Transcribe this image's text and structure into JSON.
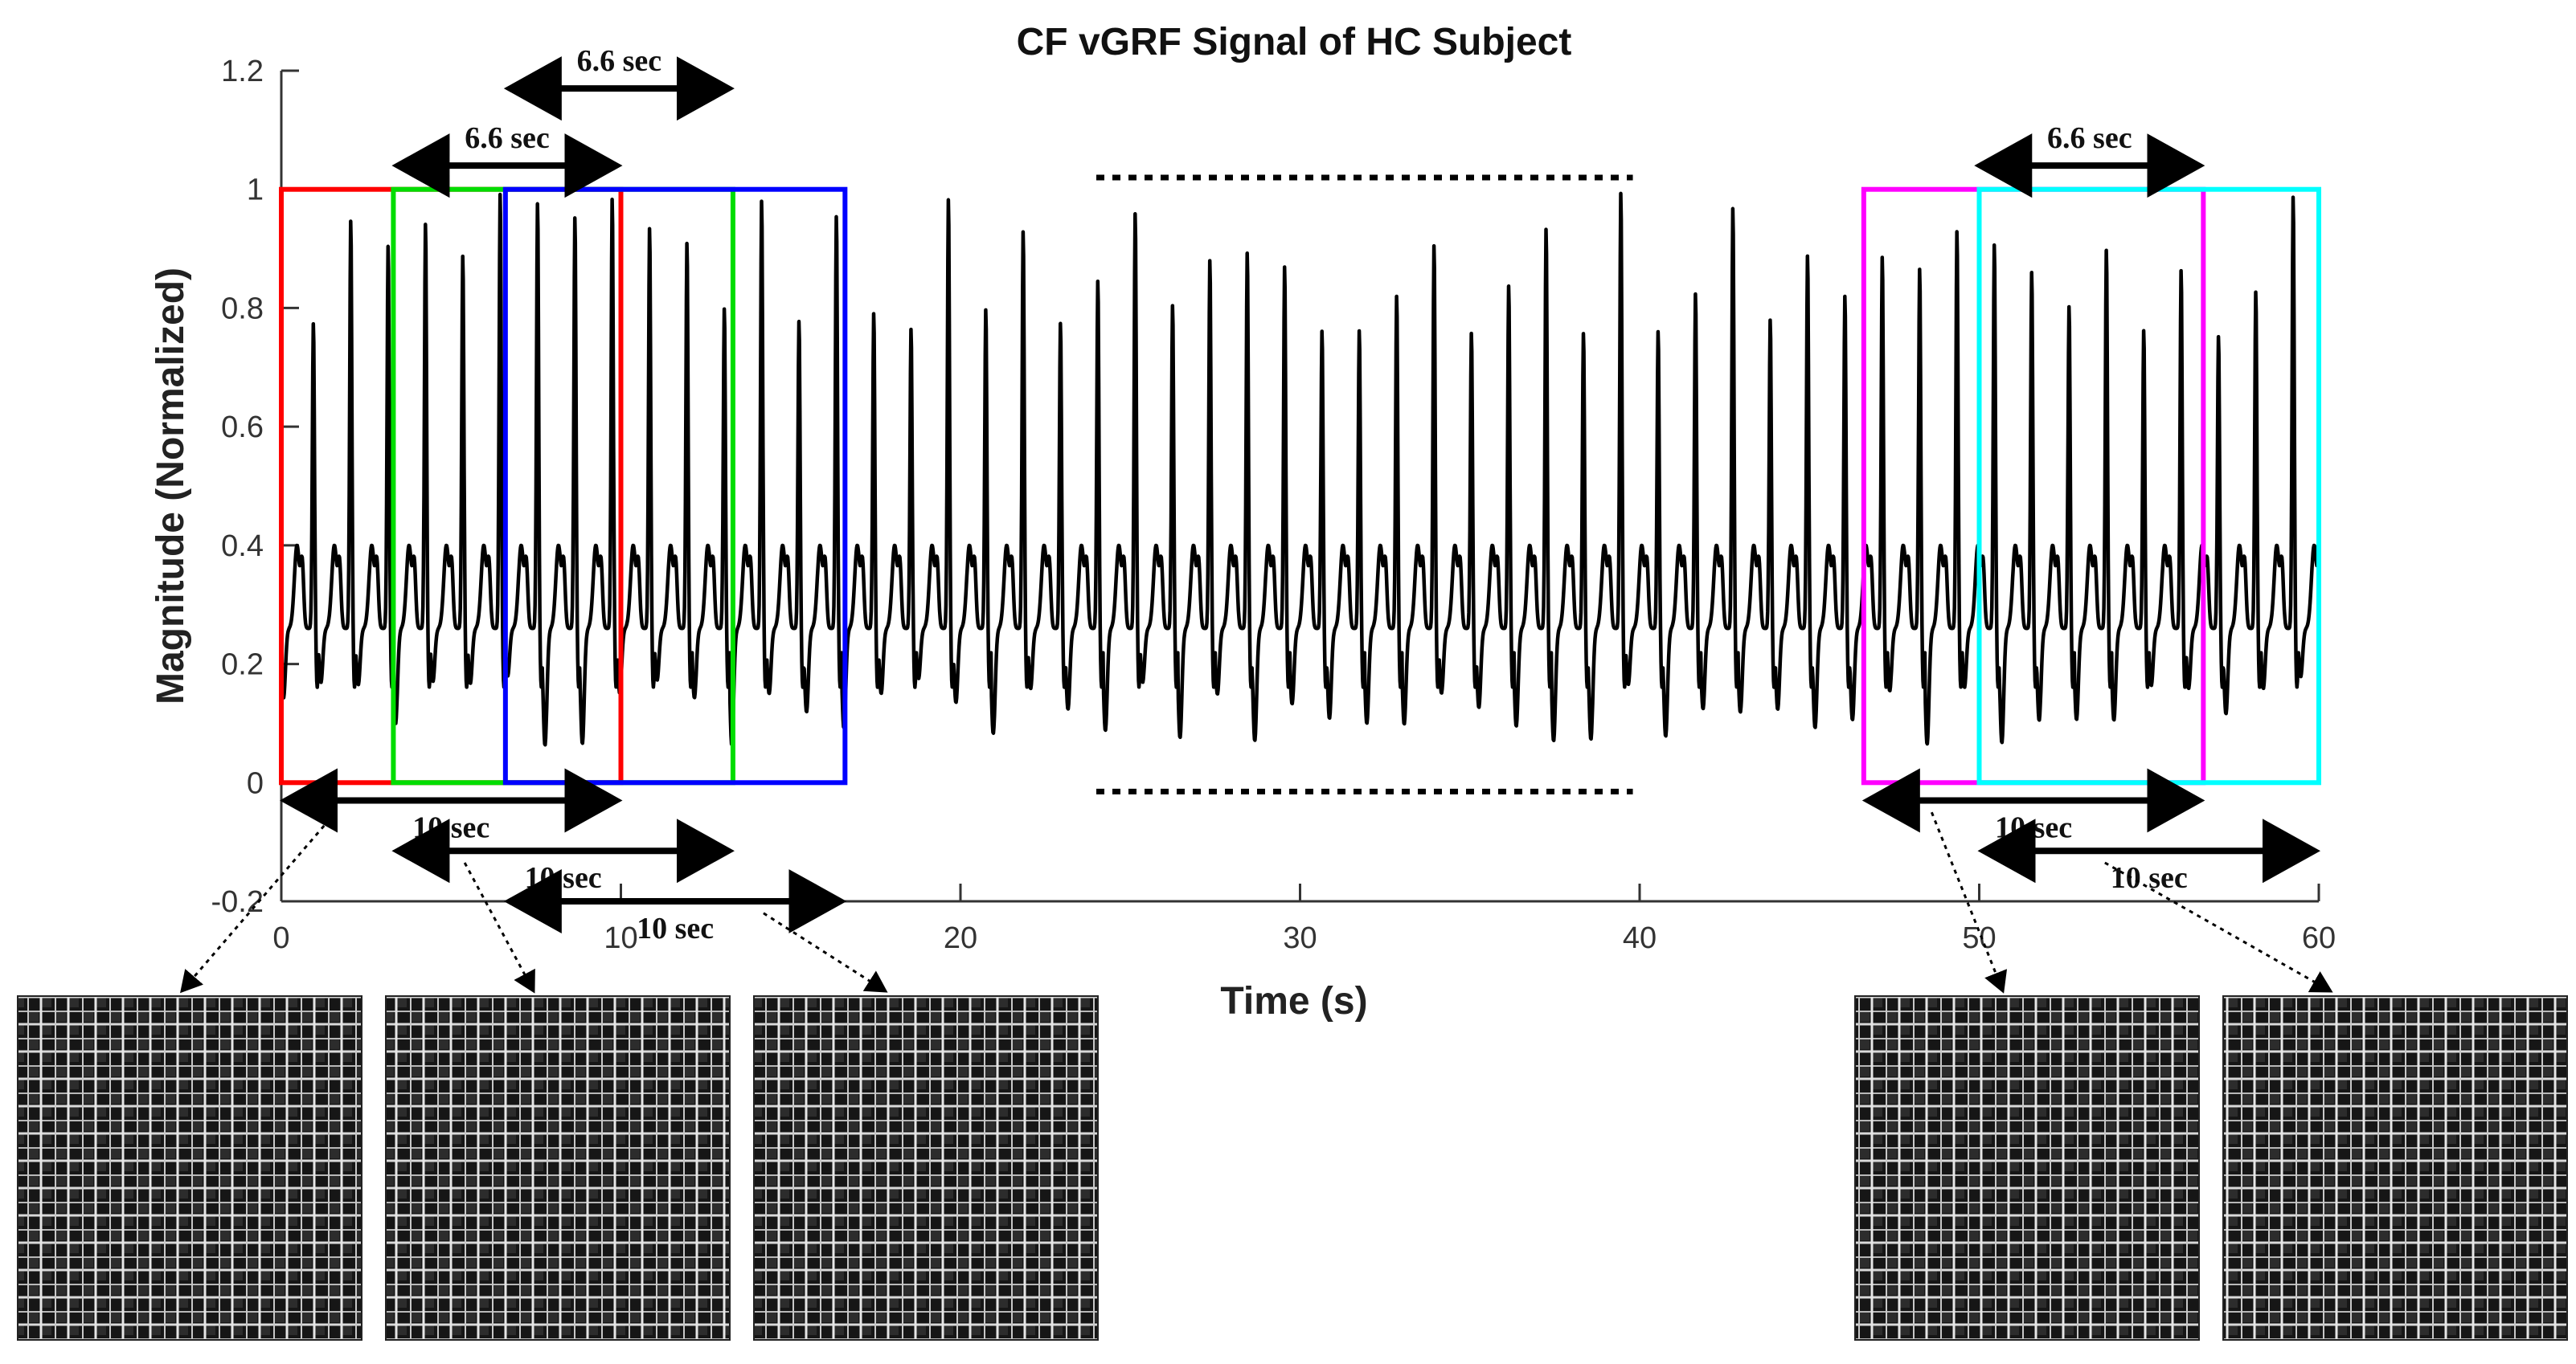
{
  "chart_data": {
    "type": "line",
    "title": "CF vGRF Signal of HC Subject",
    "xlabel": "Time (s)",
    "ylabel": "Magnitude (Normalized)",
    "xlim": [
      0,
      60
    ],
    "ylim": [
      -0.2,
      1.2
    ],
    "xticks": [
      0,
      10,
      20,
      30,
      40,
      50,
      60
    ],
    "yticks": [
      -0.2,
      0,
      0.2,
      0.4,
      0.6,
      0.8,
      1,
      1.2
    ],
    "xtick_labels": [
      "0",
      "10",
      "20",
      "30",
      "40",
      "50",
      "60"
    ],
    "ytick_labels": [
      "-0.2",
      "0",
      "0.2",
      "0.4",
      "0.6",
      "0.8",
      "1",
      "1.2"
    ],
    "series": [
      {
        "name": "CF vGRF signal",
        "color": "#000000",
        "description_values": {
          "sampling": "quasi-periodic gait cycles",
          "stride_period_s": 1.1,
          "peak_range": [
            0.75,
            1.0
          ],
          "trough_range": [
            0.0,
            0.2
          ],
          "secondary_peak": 0.38
        }
      }
    ],
    "windows": [
      {
        "name": "window-1",
        "color": "#ff0000",
        "x_range": [
          0,
          10
        ],
        "y_range": [
          0,
          1
        ]
      },
      {
        "name": "window-2",
        "color": "#00dd00",
        "x_range": [
          3.3,
          13.3
        ],
        "y_range": [
          0,
          1
        ]
      },
      {
        "name": "window-3",
        "color": "#0000ff",
        "x_range": [
          6.6,
          16.6
        ],
        "y_range": [
          0,
          1
        ]
      },
      {
        "name": "window-4",
        "color": "#ff00ff",
        "x_range": [
          46.6,
          56.6
        ],
        "y_range": [
          0,
          1
        ]
      },
      {
        "name": "window-5",
        "color": "#00ffff",
        "x_range": [
          50,
          60
        ],
        "y_range": [
          0,
          1
        ]
      }
    ],
    "annotations": {
      "overlap_arrows": [
        {
          "label": "6.6 sec",
          "x_range": [
            6.6,
            13.3
          ],
          "y": 1.17
        },
        {
          "label": "6.6 sec",
          "x_range": [
            3.3,
            10
          ],
          "y": 1.04
        },
        {
          "label": "6.6 sec",
          "x_range": [
            49.9,
            56.6
          ],
          "y": 1.04
        }
      ],
      "window_arrows": [
        {
          "label": "10 sec",
          "x_range": [
            0,
            10
          ],
          "y": -0.03
        },
        {
          "label": "10 sec",
          "x_range": [
            3.3,
            13.3
          ],
          "y": -0.115
        },
        {
          "label": "10 sec",
          "x_range": [
            6.6,
            16.6
          ],
          "y": -0.2
        },
        {
          "label": "10 sec",
          "x_range": [
            46.6,
            56.6
          ],
          "y": -0.03
        },
        {
          "label": "10 sec",
          "x_range": [
            50,
            60
          ],
          "y": -0.115
        }
      ],
      "dotted_lines": [
        {
          "x_range": [
            24,
            39.8
          ],
          "y": 1.02
        },
        {
          "x_range": [
            24,
            39.8
          ],
          "y": -0.015
        }
      ]
    },
    "image_thumbnails": [
      {
        "name": "thumbnail-1",
        "window": "window-1"
      },
      {
        "name": "thumbnail-2",
        "window": "window-2"
      },
      {
        "name": "thumbnail-3",
        "window": "window-3"
      },
      {
        "name": "thumbnail-4",
        "window": "window-4"
      },
      {
        "name": "thumbnail-5",
        "window": "window-5"
      }
    ]
  }
}
